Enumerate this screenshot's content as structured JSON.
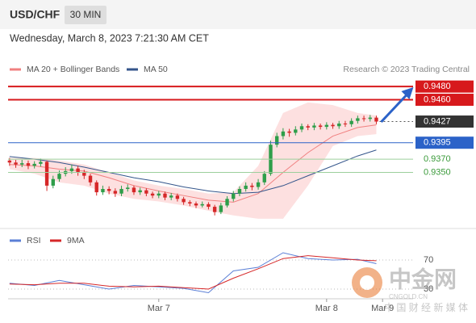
{
  "header": {
    "symbol": "USD/CHF",
    "timeframe": "30 MIN",
    "timestamp": "Wednesday, March 8, 2023 7:21:30 AM CET",
    "credit": "Research © 2023 Trading Central"
  },
  "watermark": {
    "name": "中金网",
    "domain": "CNGOLD.CN",
    "tagline": "中 国 财 经 新 媒 体"
  },
  "chart_data": [
    {
      "type": "candlestick",
      "up_color": "#2e9e4a",
      "down_color": "#d62728",
      "xlim": [
        -0.5,
        64
      ],
      "ylim": [
        0.927,
        0.949
      ],
      "xticks": [
        {
          "value": 24,
          "label": "Mar 7"
        },
        {
          "value": 51,
          "label": "Mar 8"
        },
        {
          "value": 60,
          "label": "Mar 9"
        }
      ],
      "x": [
        0,
        1,
        2,
        3,
        4,
        5,
        6,
        7,
        8,
        9,
        10,
        11,
        12,
        13,
        14,
        15,
        16,
        17,
        18,
        19,
        20,
        21,
        22,
        23,
        24,
        25,
        26,
        27,
        28,
        29,
        30,
        31,
        32,
        33,
        34,
        35,
        36,
        37,
        38,
        39,
        40,
        41,
        42,
        43,
        44,
        45,
        46,
        47,
        48,
        49,
        50,
        51,
        52,
        53,
        54,
        55,
        56,
        57,
        58,
        59
      ],
      "open": [
        0.9368,
        0.9365,
        0.9362,
        0.9364,
        0.936,
        0.9363,
        0.9366,
        0.933,
        0.934,
        0.9348,
        0.9352,
        0.9356,
        0.935,
        0.9345,
        0.9335,
        0.932,
        0.9325,
        0.9322,
        0.9318,
        0.9325,
        0.9327,
        0.932,
        0.9323,
        0.9318,
        0.9315,
        0.9318,
        0.9312,
        0.9315,
        0.931,
        0.9305,
        0.9303,
        0.93,
        0.9302,
        0.9298,
        0.929,
        0.93,
        0.931,
        0.9318,
        0.9325,
        0.933,
        0.9328,
        0.9335,
        0.9348,
        0.9392,
        0.9405,
        0.9412,
        0.941,
        0.9415,
        0.942,
        0.9418,
        0.9421,
        0.9419,
        0.9422,
        0.942,
        0.9424,
        0.9423,
        0.9428,
        0.9432,
        0.9431,
        0.9433
      ],
      "high": [
        0.9372,
        0.9369,
        0.9369,
        0.9368,
        0.9367,
        0.9371,
        0.9368,
        0.9345,
        0.9353,
        0.9358,
        0.9362,
        0.936,
        0.9354,
        0.9348,
        0.9338,
        0.933,
        0.9329,
        0.9326,
        0.933,
        0.9332,
        0.933,
        0.9327,
        0.9326,
        0.9321,
        0.9322,
        0.9321,
        0.9319,
        0.9318,
        0.9313,
        0.9308,
        0.9306,
        0.9306,
        0.9305,
        0.9301,
        0.9304,
        0.9314,
        0.9322,
        0.9329,
        0.9335,
        0.9334,
        0.934,
        0.9352,
        0.9398,
        0.941,
        0.9417,
        0.9416,
        0.942,
        0.9424,
        0.9423,
        0.9425,
        0.9424,
        0.9426,
        0.9425,
        0.9428,
        0.9428,
        0.9432,
        0.9436,
        0.9436,
        0.9437,
        0.9436
      ],
      "low": [
        0.936,
        0.9357,
        0.9358,
        0.9355,
        0.9356,
        0.9359,
        0.9322,
        0.9326,
        0.9336,
        0.9344,
        0.9348,
        0.9345,
        0.934,
        0.933,
        0.9315,
        0.9316,
        0.9317,
        0.9313,
        0.9314,
        0.9321,
        0.9316,
        0.9316,
        0.9314,
        0.9311,
        0.9311,
        0.9308,
        0.9308,
        0.9306,
        0.9301,
        0.9299,
        0.9296,
        0.9297,
        0.9294,
        0.9285,
        0.9287,
        0.9297,
        0.9306,
        0.9314,
        0.9321,
        0.9323,
        0.9324,
        0.9331,
        0.9345,
        0.9388,
        0.94,
        0.9404,
        0.9406,
        0.9411,
        0.9414,
        0.9414,
        0.9415,
        0.9415,
        0.9416,
        0.9416,
        0.9419,
        0.9419,
        0.9424,
        0.9427,
        0.9427,
        0.9423
      ],
      "close": [
        0.9365,
        0.9362,
        0.9364,
        0.936,
        0.9363,
        0.9366,
        0.933,
        0.934,
        0.9348,
        0.9352,
        0.9356,
        0.935,
        0.9345,
        0.9335,
        0.932,
        0.9325,
        0.9322,
        0.9318,
        0.9325,
        0.9327,
        0.932,
        0.9323,
        0.9318,
        0.9315,
        0.9318,
        0.9312,
        0.9315,
        0.931,
        0.9305,
        0.9303,
        0.93,
        0.9302,
        0.9298,
        0.929,
        0.93,
        0.931,
        0.9318,
        0.9325,
        0.933,
        0.9328,
        0.9335,
        0.9348,
        0.9392,
        0.9405,
        0.9412,
        0.941,
        0.9415,
        0.942,
        0.9418,
        0.9421,
        0.9419,
        0.9422,
        0.942,
        0.9424,
        0.9423,
        0.9428,
        0.9432,
        0.9431,
        0.9433,
        0.9427
      ],
      "series": [
        {
          "name": "MA 20 + Bollinger Bands",
          "color": "#f08080",
          "band_color": "#fde0e0",
          "x": [
            0,
            4,
            8,
            12,
            16,
            20,
            24,
            28,
            32,
            36,
            40,
            44,
            48,
            52,
            56,
            59
          ],
          "values": [
            0.9362,
            0.936,
            0.9355,
            0.9352,
            0.9342,
            0.933,
            0.9322,
            0.9315,
            0.9308,
            0.9305,
            0.9318,
            0.935,
            0.938,
            0.9405,
            0.9418,
            0.9422
          ],
          "upper": [
            0.9372,
            0.9372,
            0.9368,
            0.9362,
            0.935,
            0.9338,
            0.933,
            0.9325,
            0.9318,
            0.932,
            0.936,
            0.944,
            0.9456,
            0.9452,
            0.944,
            0.9436
          ],
          "lower": [
            0.9355,
            0.9348,
            0.9335,
            0.933,
            0.9318,
            0.931,
            0.9306,
            0.93,
            0.9292,
            0.9285,
            0.928,
            0.928,
            0.933,
            0.939,
            0.9405,
            0.9408
          ]
        },
        {
          "name": "MA 50",
          "color": "#34558b",
          "x": [
            0,
            4,
            8,
            12,
            16,
            20,
            24,
            28,
            32,
            36,
            40,
            44,
            48,
            52,
            56,
            59
          ],
          "values": [
            0.9374,
            0.937,
            0.9365,
            0.9358,
            0.935,
            0.9342,
            0.9336,
            0.9328,
            0.9322,
            0.9318,
            0.932,
            0.933,
            0.9345,
            0.936,
            0.9375,
            0.9384
          ]
        }
      ],
      "levels": [
        {
          "value": 0.948,
          "label": "0.9480",
          "color": "#d7191c",
          "kind": "box",
          "dash": false
        },
        {
          "value": 0.946,
          "label": "0.9460",
          "color": "#d7191c",
          "kind": "box",
          "dash": false
        },
        {
          "value": 0.9427,
          "label": "0.9427",
          "color": "#333333",
          "kind": "box",
          "dash": true
        },
        {
          "value": 0.9395,
          "label": "0.9395",
          "color": "#2b62c8",
          "kind": "box",
          "dash": false
        },
        {
          "value": 0.937,
          "label": "0.9370",
          "color": "#3a9a3a",
          "kind": "text",
          "dash": false
        },
        {
          "value": 0.935,
          "label": "0.9350",
          "color": "#3a9a3a",
          "kind": "text",
          "dash": false
        }
      ]
    },
    {
      "type": "line",
      "xlim": [
        -0.5,
        64
      ],
      "ylim": [
        15,
        100
      ],
      "yticks": [
        30,
        70
      ],
      "grid": true,
      "series": [
        {
          "name": "RSI",
          "color": "#5b7fd6",
          "x": [
            0,
            4,
            8,
            12,
            16,
            20,
            24,
            28,
            32,
            36,
            40,
            44,
            48,
            52,
            56,
            59
          ],
          "values": [
            38,
            35,
            42,
            36,
            30,
            35,
            33,
            31,
            25,
            55,
            60,
            80,
            72,
            70,
            71,
            65
          ]
        },
        {
          "name": "9MA",
          "color": "#d62728",
          "x": [
            0,
            4,
            8,
            12,
            16,
            20,
            24,
            28,
            32,
            36,
            40,
            44,
            48,
            52,
            56,
            59
          ],
          "values": [
            37,
            36,
            38,
            38,
            34,
            33,
            34,
            32,
            30,
            45,
            58,
            72,
            76,
            73,
            70,
            69
          ]
        }
      ]
    }
  ]
}
